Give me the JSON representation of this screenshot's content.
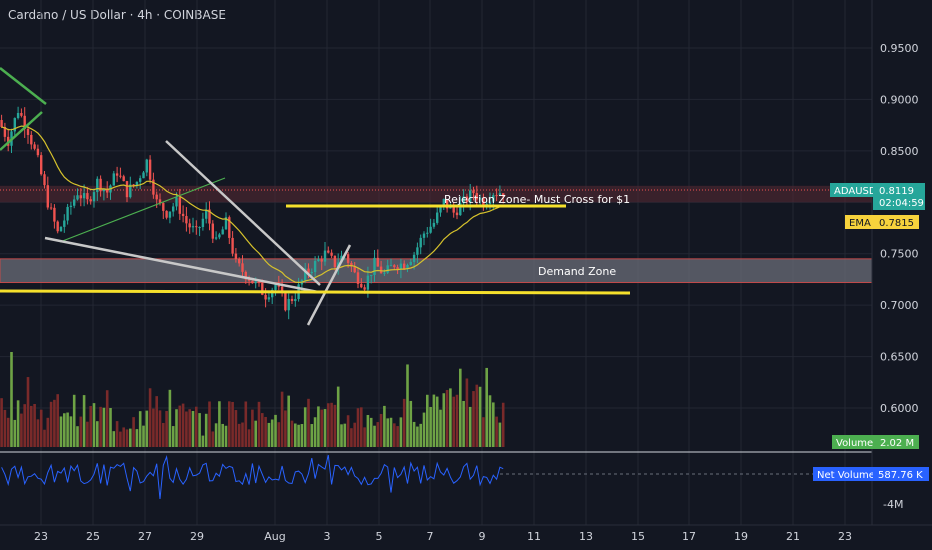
{
  "header": {
    "title": "Cardano / US Dollar · 4h · COINBASE"
  },
  "colors": {
    "background": "#131722",
    "up": "#26a69a",
    "down": "#ef5350",
    "vol_up": "#6ea345",
    "vol_down": "#7a2a2a",
    "ema": "#d6c22c",
    "yellow_line": "#f5e02c",
    "green_line": "#4caf50",
    "white_line": "#c8c8c8",
    "net_volume": "#2962ff",
    "demand_zone": "#6b6e78",
    "rejection_zone": "#5a2a33"
  },
  "chart_data": [
    {
      "type": "candlestick",
      "title": "Cardano / US Dollar · 4h · COINBASE",
      "y_ticks": [
        "0.9500",
        "0.9000",
        "0.8500",
        "0.8000",
        "0.7500",
        "0.7000",
        "0.6500",
        "0.6000"
      ],
      "y_tick_values": [
        0.95,
        0.9,
        0.85,
        0.8,
        0.75,
        0.7,
        0.65,
        0.6
      ],
      "x_ticks": [
        "23",
        "25",
        "27",
        "29",
        "Aug",
        "3",
        "5",
        "7",
        "9",
        "11",
        "13",
        "15",
        "17",
        "19",
        "21",
        "23"
      ],
      "grid": true,
      "anchors": [
        [
          0,
          0.88
        ],
        [
          3,
          0.86
        ],
        [
          6,
          0.89
        ],
        [
          9,
          0.87
        ],
        [
          12,
          0.84
        ],
        [
          15,
          0.8
        ],
        [
          18,
          0.77
        ],
        [
          21,
          0.79
        ],
        [
          24,
          0.81
        ],
        [
          27,
          0.8
        ],
        [
          30,
          0.82
        ],
        [
          33,
          0.81
        ],
        [
          36,
          0.83
        ],
        [
          39,
          0.81
        ],
        [
          42,
          0.82
        ],
        [
          45,
          0.84
        ],
        [
          48,
          0.8
        ],
        [
          51,
          0.79
        ],
        [
          54,
          0.8
        ],
        [
          57,
          0.78
        ],
        [
          60,
          0.77
        ],
        [
          63,
          0.79
        ],
        [
          66,
          0.76
        ],
        [
          69,
          0.78
        ],
        [
          72,
          0.74
        ],
        [
          75,
          0.73
        ],
        [
          78,
          0.72
        ],
        [
          81,
          0.71
        ],
        [
          84,
          0.72
        ],
        [
          87,
          0.7
        ],
        [
          90,
          0.71
        ],
        [
          93,
          0.73
        ],
        [
          96,
          0.74
        ],
        [
          99,
          0.75
        ],
        [
          102,
          0.74
        ],
        [
          105,
          0.75
        ],
        [
          108,
          0.73
        ],
        [
          111,
          0.72
        ],
        [
          114,
          0.74
        ],
        [
          117,
          0.73
        ],
        [
          120,
          0.74
        ],
        [
          123,
          0.74
        ],
        [
          126,
          0.75
        ],
        [
          129,
          0.77
        ],
        [
          132,
          0.78
        ],
        [
          135,
          0.8
        ],
        [
          138,
          0.79
        ],
        [
          141,
          0.8
        ],
        [
          144,
          0.81
        ],
        [
          147,
          0.8
        ],
        [
          150,
          0.81
        ],
        [
          152,
          0.81
        ]
      ],
      "volume_profile": [
        [
          0,
          0.35
        ],
        [
          6,
          0.45
        ],
        [
          12,
          0.3
        ],
        [
          18,
          0.4
        ],
        [
          24,
          0.35
        ],
        [
          30,
          0.3
        ],
        [
          36,
          0.25
        ],
        [
          42,
          0.3
        ],
        [
          48,
          0.35
        ],
        [
          54,
          0.3
        ],
        [
          60,
          0.25
        ],
        [
          66,
          0.3
        ],
        [
          72,
          0.35
        ],
        [
          78,
          0.3
        ],
        [
          84,
          0.4
        ],
        [
          90,
          0.35
        ],
        [
          96,
          0.3
        ],
        [
          102,
          0.25
        ],
        [
          108,
          0.3
        ],
        [
          114,
          0.3
        ],
        [
          120,
          0.3
        ],
        [
          126,
          0.35
        ],
        [
          132,
          0.5
        ],
        [
          138,
          0.6
        ],
        [
          144,
          0.45
        ],
        [
          152,
          0.3
        ]
      ],
      "n_candles": 153,
      "ema_label": "EMA",
      "ema_value": "0.7815",
      "symbol": "ADAUSD",
      "last_price": "0.8119",
      "countdown": "02:04:59"
    },
    {
      "type": "bar",
      "title": "Volume",
      "value_label": "2.02 M"
    },
    {
      "type": "line",
      "title": "Net Volume",
      "value_label": "587.76 K",
      "y_ticks": [
        "-4M"
      ]
    }
  ],
  "annotations": {
    "rejection_zone_label": "Rejection Zone- Must Cross for $1",
    "demand_zone_label": "Demand Zone"
  }
}
